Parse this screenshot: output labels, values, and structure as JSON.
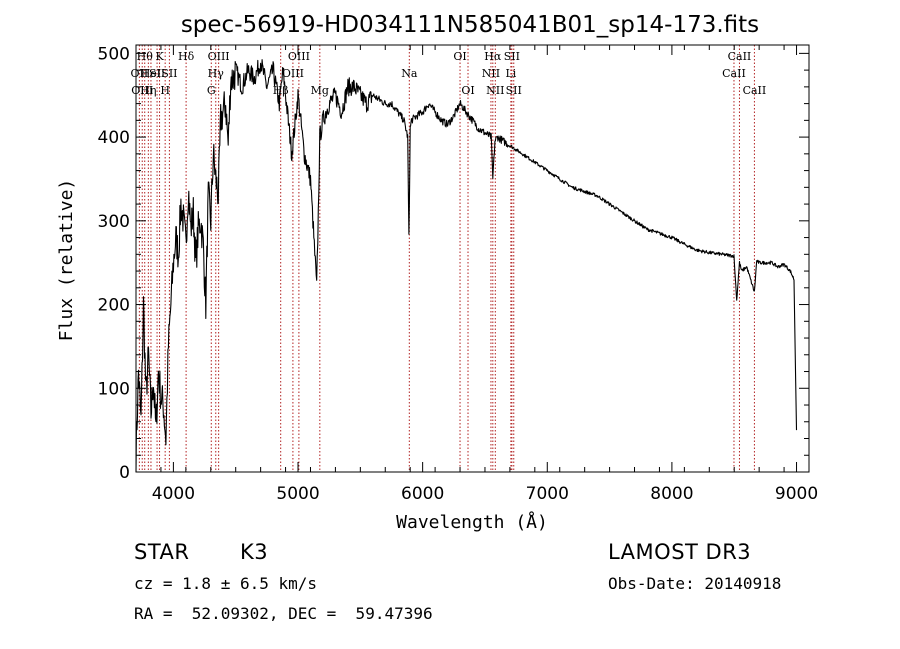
{
  "chart_data": {
    "type": "line",
    "title": "spec-56919-HD034111N585041B01_sp14-173.fits",
    "xlabel": "Wavelength (Å)",
    "ylabel": "Flux (relative)",
    "xlim": [
      3700,
      9100
    ],
    "ylim": [
      0,
      510
    ],
    "xticks": [
      {
        "value": 4000,
        "label": "4000"
      },
      {
        "value": 5000,
        "label": "5000"
      },
      {
        "value": 6000,
        "label": "6000"
      },
      {
        "value": 7000,
        "label": "7000"
      },
      {
        "value": 8000,
        "label": "8000"
      },
      {
        "value": 9000,
        "label": "9000"
      }
    ],
    "yticks": [
      {
        "value": 0,
        "label": "0"
      },
      {
        "value": 100,
        "label": "100"
      },
      {
        "value": 200,
        "label": "200"
      },
      {
        "value": 300,
        "label": "300"
      },
      {
        "value": 400,
        "label": "400"
      },
      {
        "value": 500,
        "label": "500"
      }
    ],
    "series": [
      {
        "name": "spectrum",
        "x": [
          3700,
          3720,
          3740,
          3760,
          3780,
          3800,
          3820,
          3840,
          3860,
          3880,
          3900,
          3920,
          3940,
          3960,
          3980,
          4000,
          4020,
          4040,
          4060,
          4080,
          4100,
          4120,
          4140,
          4160,
          4180,
          4200,
          4220,
          4240,
          4260,
          4280,
          4300,
          4320,
          4340,
          4360,
          4380,
          4400,
          4420,
          4440,
          4460,
          4480,
          4500,
          4550,
          4600,
          4650,
          4700,
          4750,
          4800,
          4850,
          4880,
          4900,
          4950,
          5000,
          5050,
          5100,
          5150,
          5175,
          5200,
          5250,
          5300,
          5350,
          5400,
          5450,
          5500,
          5550,
          5600,
          5650,
          5700,
          5750,
          5800,
          5850,
          5880,
          5890,
          5900,
          5910,
          5950,
          6000,
          6050,
          6100,
          6150,
          6200,
          6250,
          6300,
          6350,
          6400,
          6450,
          6500,
          6550,
          6563,
          6580,
          6600,
          6650,
          6700,
          6750,
          6800,
          6850,
          6900,
          6950,
          7000,
          7100,
          7200,
          7300,
          7400,
          7500,
          7600,
          7700,
          7800,
          7900,
          8000,
          8100,
          8200,
          8300,
          8400,
          8498,
          8520,
          8542,
          8560,
          8600,
          8662,
          8680,
          8700,
          8750,
          8800,
          8850,
          8900,
          8950,
          8980,
          9000
        ],
        "y": [
          20,
          120,
          60,
          200,
          90,
          140,
          70,
          110,
          50,
          120,
          90,
          80,
          40,
          150,
          200,
          250,
          280,
          260,
          320,
          300,
          270,
          340,
          290,
          310,
          250,
          290,
          300,
          270,
          200,
          330,
          300,
          380,
          350,
          330,
          420,
          430,
          440,
          390,
          470,
          470,
          480,
          460,
          480,
          470,
          490,
          460,
          480,
          440,
          480,
          450,
          380,
          450,
          380,
          350,
          220,
          400,
          420,
          440,
          450,
          430,
          460,
          460,
          450,
          440,
          450,
          445,
          440,
          440,
          430,
          420,
          400,
          280,
          410,
          420,
          425,
          430,
          440,
          430,
          420,
          415,
          425,
          440,
          430,
          420,
          410,
          405,
          400,
          350,
          395,
          400,
          395,
          390,
          385,
          380,
          375,
          370,
          365,
          360,
          350,
          340,
          335,
          330,
          320,
          310,
          300,
          290,
          285,
          280,
          272,
          265,
          262,
          260,
          258,
          205,
          250,
          240,
          245,
          215,
          252,
          250,
          250,
          250,
          245,
          248,
          240,
          230,
          50
        ]
      }
    ],
    "lines": [
      {
        "wave": 3727,
        "label": "OII",
        "row": 1
      },
      {
        "wave": 3750,
        "label": "OIII",
        "row": 2
      },
      {
        "wave": 3770,
        "label": "Hθ",
        "row": 0
      },
      {
        "wave": 3799,
        "label": "Hη",
        "row": 2
      },
      {
        "wave": 3820,
        "label": "HeI",
        "row": 1
      },
      {
        "wave": 3869,
        "label": "SII",
        "row": 1
      },
      {
        "wave": 3889,
        "label": "K",
        "row": 0
      },
      {
        "wave": 3934,
        "label": "H",
        "row": 2
      },
      {
        "wave": 3968,
        "label": "SII",
        "row": 1
      },
      {
        "wave": 4102,
        "label": "Hδ",
        "row": 0
      },
      {
        "wave": 4304,
        "label": "G",
        "row": 2
      },
      {
        "wave": 4340,
        "label": "Hγ",
        "row": 1
      },
      {
        "wave": 4363,
        "label": "OIII",
        "row": 0
      },
      {
        "wave": 4861,
        "label": "Hβ",
        "row": 2
      },
      {
        "wave": 4959,
        "label": "OIII",
        "row": 1
      },
      {
        "wave": 5007,
        "label": "OIII",
        "row": 0
      },
      {
        "wave": 5175,
        "label": "Mg",
        "row": 2
      },
      {
        "wave": 5893,
        "label": "Na",
        "row": 1
      },
      {
        "wave": 6300,
        "label": "OI",
        "row": 0
      },
      {
        "wave": 6364,
        "label": "OI",
        "row": 2
      },
      {
        "wave": 6548,
        "label": "NII",
        "row": 1
      },
      {
        "wave": 6563,
        "label": "Hα",
        "row": 0
      },
      {
        "wave": 6583,
        "label": "NII",
        "row": 2
      },
      {
        "wave": 6708,
        "label": "Li",
        "row": 1
      },
      {
        "wave": 6716,
        "label": "SII",
        "row": 0
      },
      {
        "wave": 6731,
        "label": "SII",
        "row": 2
      },
      {
        "wave": 8498,
        "label": "CaII",
        "row": 1
      },
      {
        "wave": 8542,
        "label": "CaII",
        "row": 0
      },
      {
        "wave": 8662,
        "label": "CaII",
        "row": 2
      }
    ]
  },
  "info": {
    "class_label": "STAR",
    "subclass": "K3",
    "survey": "LAMOST DR3",
    "cz": "cz = 1.8 ± 6.5 km/s",
    "obs_date": "Obs-Date: 20140918",
    "coords": "RA =  52.09302, DEC =  59.47396"
  },
  "colors": {
    "spectrum": "#000000",
    "line_marker": "#b22222",
    "axis": "#000000"
  }
}
